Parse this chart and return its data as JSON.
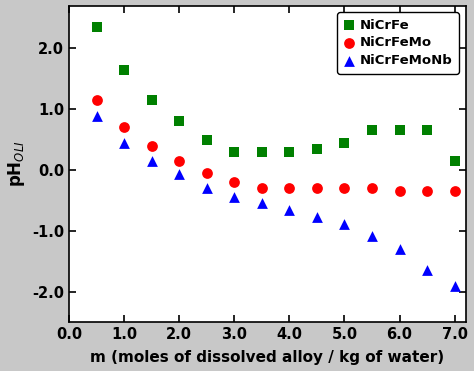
{
  "NiCrFe_x": [
    0.5,
    1.0,
    1.5,
    2.0,
    2.5,
    3.0,
    3.5,
    4.0,
    4.5,
    5.0,
    5.5,
    6.0,
    6.5,
    7.0
  ],
  "NiCrFe_y": [
    2.35,
    1.65,
    1.15,
    0.8,
    0.5,
    0.3,
    0.3,
    0.3,
    0.35,
    0.45,
    0.65,
    0.65,
    0.65,
    0.15
  ],
  "NiCrFeMo_x": [
    0.5,
    1.0,
    1.5,
    2.0,
    2.5,
    3.0,
    3.5,
    4.0,
    4.5,
    5.0,
    5.5,
    6.0,
    6.5,
    7.0
  ],
  "NiCrFeMo_y": [
    1.15,
    0.7,
    0.4,
    0.15,
    -0.05,
    -0.2,
    -0.3,
    -0.3,
    -0.3,
    -0.3,
    -0.3,
    -0.35,
    -0.35,
    -0.35
  ],
  "NiCrFeMoNb_x": [
    0.5,
    1.0,
    1.5,
    2.0,
    2.5,
    3.0,
    3.5,
    4.0,
    4.5,
    5.0,
    5.5,
    6.0,
    6.5,
    7.0
  ],
  "NiCrFeMoNb_y": [
    0.88,
    0.45,
    0.15,
    -0.07,
    -0.3,
    -0.45,
    -0.55,
    -0.65,
    -0.78,
    -0.88,
    -1.08,
    -1.3,
    -1.65,
    -1.9
  ],
  "NiCrFe_color": "#008000",
  "NiCrFeMo_color": "#ff0000",
  "NiCrFeMoNb_color": "#0000ff",
  "xlabel": "m (moles of dissolved alloy / kg of water)",
  "ylabel": "pH$_{OLI}$",
  "xlim": [
    0.0,
    7.2
  ],
  "ylim": [
    -2.5,
    2.7
  ],
  "xticks": [
    0.0,
    1.0,
    2.0,
    3.0,
    4.0,
    5.0,
    6.0,
    7.0
  ],
  "yticks": [
    -2.0,
    -1.0,
    0.0,
    1.0,
    2.0
  ],
  "legend_labels": [
    "NiCrFe",
    "NiCrFeMo",
    "NiCrFeMoNb"
  ],
  "bg_color": "#c8c8c8",
  "plot_bg_color": "#ffffff",
  "marker_size_sq": 55,
  "marker_size_circ": 60,
  "marker_size_tri": 60
}
